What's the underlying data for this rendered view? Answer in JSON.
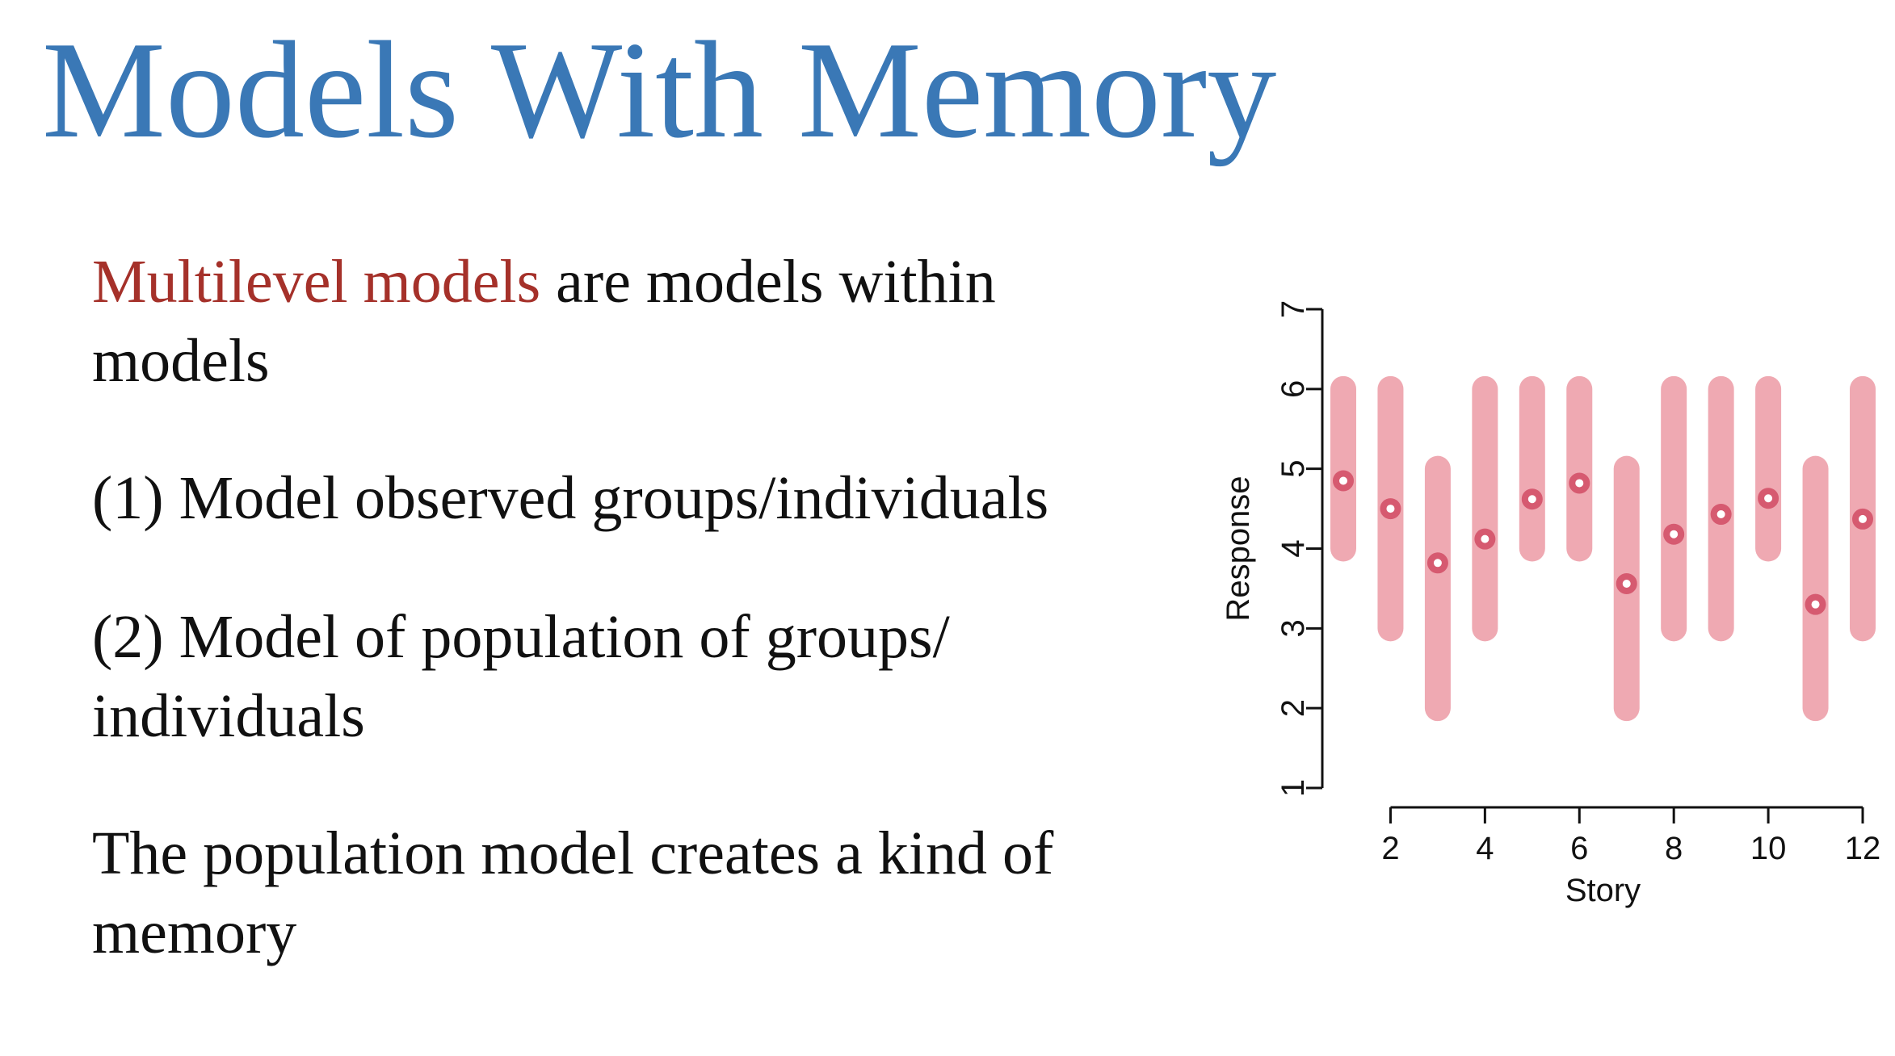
{
  "slide": {
    "title": "Models With Memory",
    "title_color": "#3a78b6",
    "highlight_color": "#a5312a",
    "point1": {
      "highlight": "Multilevel models",
      "rest": " are models within models"
    },
    "point2": "(1) Model observed groups/individuals",
    "point3": "(2) Model of population of groups/ individuals",
    "point4": "The population model creates a kind of memory"
  },
  "chart_data": {
    "type": "interval",
    "title": "",
    "xlabel": "Story",
    "ylabel": "Response",
    "x": [
      1,
      2,
      3,
      4,
      5,
      6,
      7,
      8,
      9,
      10,
      11,
      12
    ],
    "xticks": [
      2,
      4,
      6,
      8,
      10,
      12
    ],
    "yticks": [
      1,
      2,
      3,
      4,
      5,
      6,
      7
    ],
    "xlim": [
      1,
      12
    ],
    "ylim": [
      1,
      7
    ],
    "point_estimate": [
      4.85,
      4.5,
      3.82,
      4.12,
      4.62,
      4.82,
      3.56,
      4.18,
      4.43,
      4.63,
      3.3,
      4.37
    ],
    "interval_low": [
      4.0,
      3.0,
      2.0,
      3.0,
      4.0,
      4.0,
      2.0,
      3.0,
      3.0,
      4.0,
      2.0,
      3.0
    ],
    "interval_high": [
      6.0,
      6.0,
      5.0,
      6.0,
      6.0,
      6.0,
      5.0,
      6.0,
      6.0,
      6.0,
      5.0,
      6.0
    ],
    "interval_color": "#efa9b2",
    "point_color": "#d65a70",
    "grid": false
  }
}
